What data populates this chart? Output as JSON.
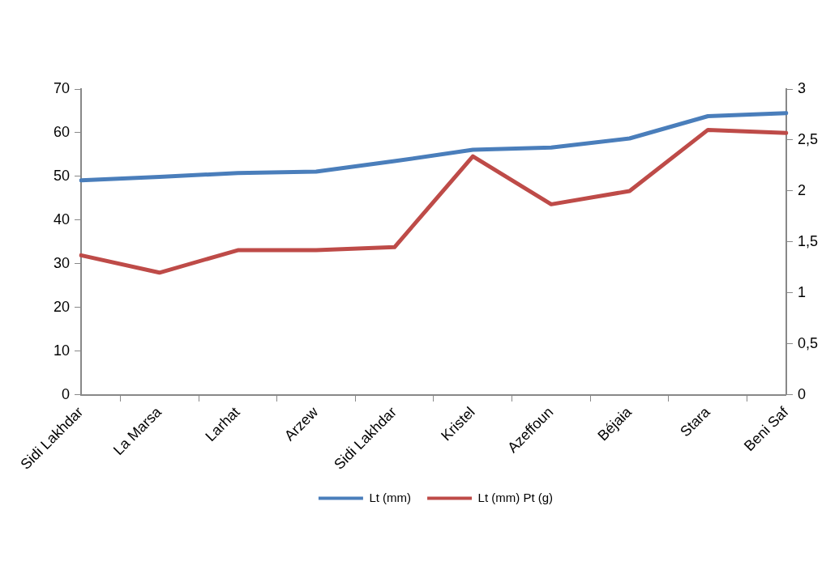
{
  "chart_data": {
    "type": "line",
    "categories": [
      "Sidi Lakhdar",
      "La Marsa",
      "Larhat",
      "Arzew",
      "Sidi Lakhdar",
      "Kristel",
      "Azeffoun",
      "Béjaia",
      "Stara",
      "Beni Saf"
    ],
    "series": [
      {
        "name": "Lt (mm)",
        "color": "#4a7ebb",
        "values": [
          49.1,
          49.9,
          50.8,
          51.1,
          53.5,
          56.1,
          56.6,
          58.7,
          63.8,
          64.5
        ]
      },
      {
        "name": "Lt (mm) Pt (g)",
        "color": "#be4b48",
        "axis": "y2",
        "values": [
          1.37,
          1.2,
          1.42,
          1.42,
          1.45,
          2.34,
          1.87,
          2.0,
          2.6,
          2.57
        ]
      }
    ],
    "ylim": [
      0,
      70
    ],
    "yticks": [
      0,
      10,
      20,
      30,
      40,
      50,
      60,
      70
    ],
    "y2lim": [
      0,
      3
    ],
    "y2ticks": [
      0,
      {
        "value": 0.5,
        "label": "0,5"
      },
      1,
      {
        "value": 1.5,
        "label": "1,5"
      },
      2,
      {
        "value": 2.5,
        "label": "2,5"
      },
      3
    ],
    "grid": false,
    "legend": "bottom",
    "marker": "none",
    "line_style": "solid"
  }
}
